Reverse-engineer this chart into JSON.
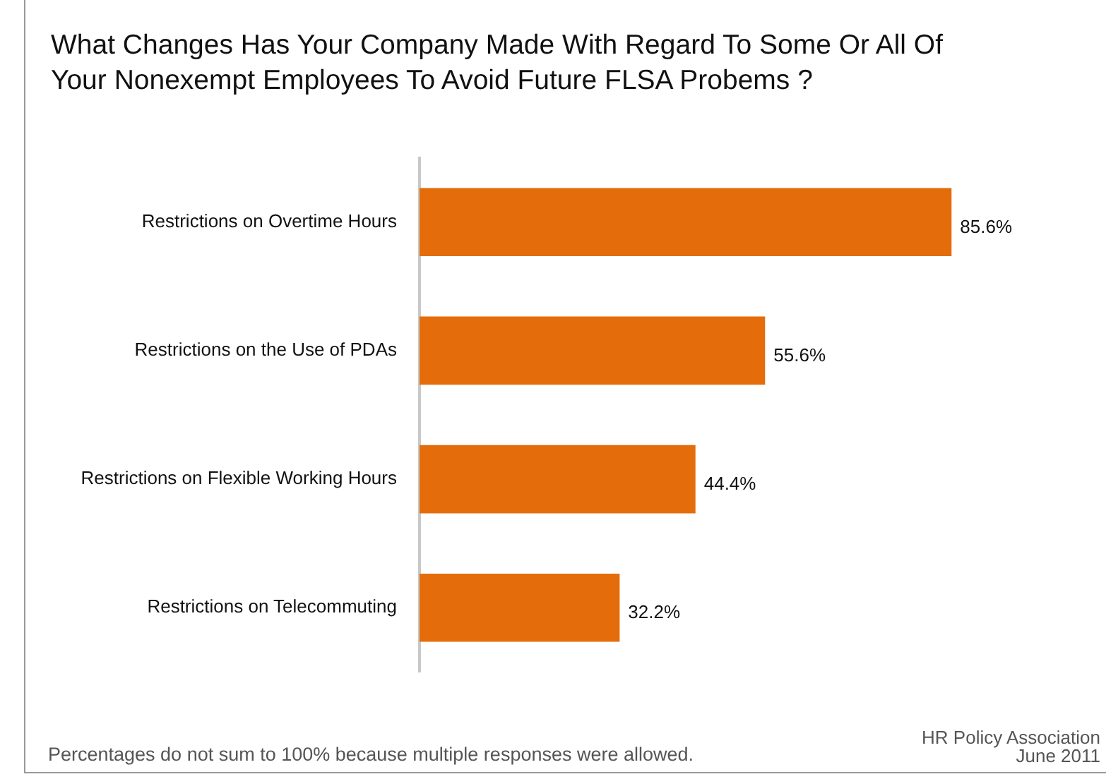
{
  "chart_data": {
    "type": "bar",
    "orientation": "horizontal",
    "title": "What Changes Has Your Company Made With Regard To Some Or All Of Your Nonexempt Employees To Avoid Future FLSA Probems ?",
    "categories": [
      "Restrictions on Overtime Hours",
      "Restrictions on the Use of PDAs",
      "Restrictions on Flexible Working Hours",
      "Restrictions on Telecommuting"
    ],
    "values": [
      85.6,
      55.6,
      44.4,
      32.2
    ],
    "value_labels": [
      "85.6%",
      "55.6%",
      "44.4%",
      "32.2%"
    ],
    "color": "#e46c0a",
    "tick_labels": "y",
    "grid": false,
    "legend": false,
    "annotations": [
      "Percentages do not sum to 100% because multiple responses were allowed.",
      "HR Policy Association",
      "June 2011"
    ]
  }
}
